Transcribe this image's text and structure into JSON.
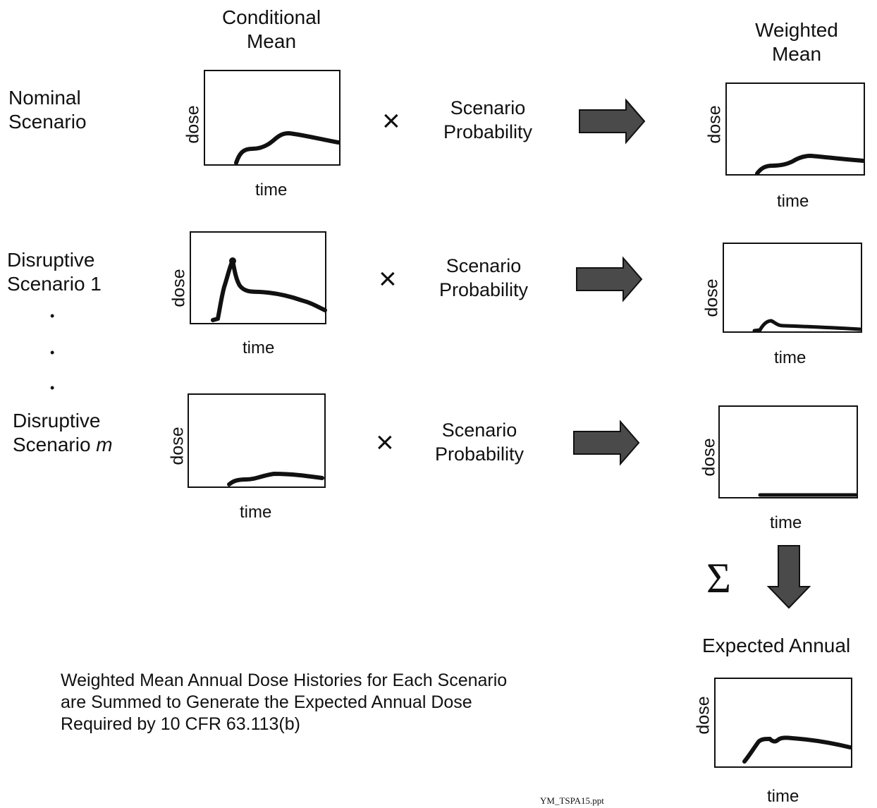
{
  "headers": {
    "conditional_mean": [
      "Conditional",
      "Mean"
    ],
    "weighted_mean": [
      "Weighted",
      "Mean"
    ],
    "expected_annual": "Expected Annual"
  },
  "scenarios": [
    {
      "label_lines": [
        "Nominal",
        "Scenario"
      ]
    },
    {
      "label_lines": [
        "Disruptive",
        "Scenario 1"
      ]
    },
    {
      "label_lines": [
        "Disruptive",
        "Scenario ",
        "m"
      ]
    }
  ],
  "ellipsis": "•",
  "times_sign": "×",
  "probability_label": [
    "Scenario",
    "Probability"
  ],
  "axis": {
    "ylabel": "dose",
    "xlabel": "time"
  },
  "sum_symbol": "Σ",
  "description_lines": [
    "Weighted Mean Annual Dose Histories for Each Scenario",
    "are Summed to Generate the Expected Annual Dose",
    "Required by 10 CFR 63.113(b)"
  ],
  "footer": "YM_TSPA15.ppt",
  "colors": {
    "ink": "#111111",
    "arrow_fill": "#4a4a4a"
  }
}
